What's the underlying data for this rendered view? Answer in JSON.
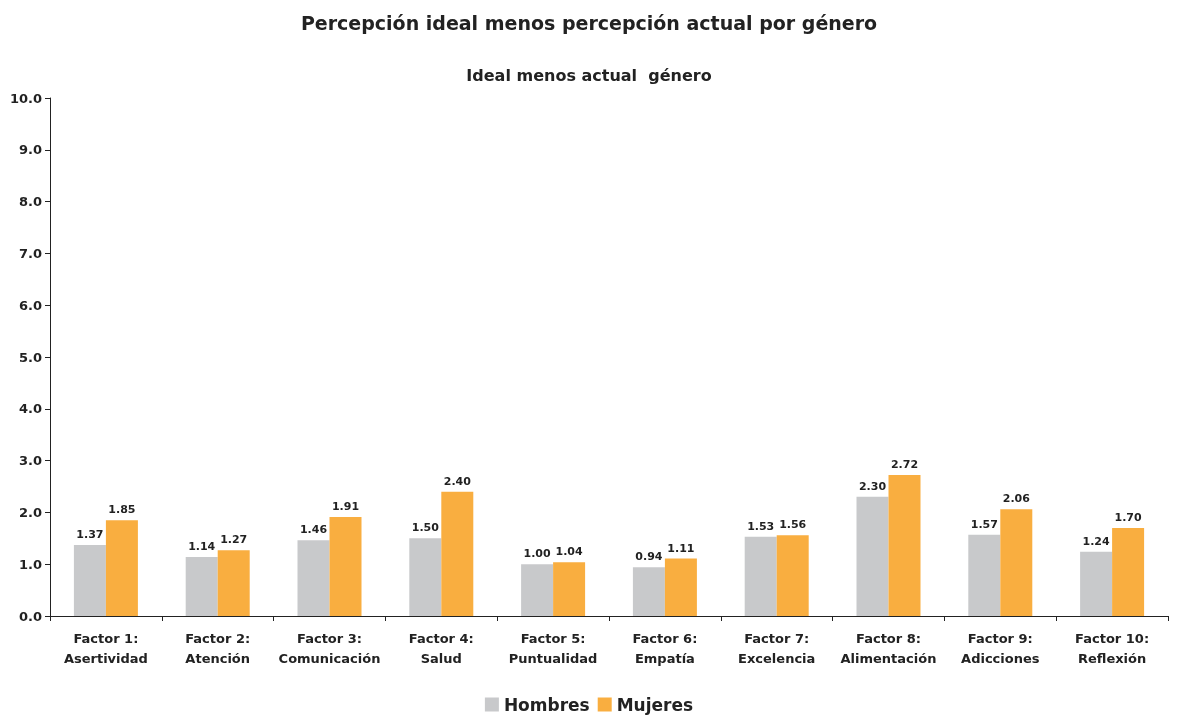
{
  "chart_data": {
    "type": "bar",
    "title": "Percepción ideal menos percepción actual por género",
    "subtitle": "Ideal menos actual  género",
    "categories": [
      "Factor 1:\nAsertividad",
      "Factor 2:\nAtención",
      "Factor 3:\nComunicación",
      "Factor 4:\nSalud",
      "Factor 5:\nPuntualidad",
      "Factor 6:\nEmpatía",
      "Factor 7:\nExcelencia",
      "Factor 8:\nAlimentación",
      "Factor 9:\nAdicciones",
      "Factor 10:\nReflexión"
    ],
    "series": [
      {
        "name": "Hombres",
        "color": "#c8c9cb",
        "values": [
          1.37,
          1.14,
          1.46,
          1.5,
          1.0,
          0.94,
          1.53,
          2.3,
          1.57,
          1.24
        ],
        "value_labels": [
          "1.37",
          "1.14",
          "1.46",
          "1.50",
          "1.00",
          "0.94",
          "1.53",
          "2.30",
          "1.57",
          "1.24"
        ]
      },
      {
        "name": "Mujeres",
        "color": "#f9ae40",
        "values": [
          1.85,
          1.27,
          1.91,
          2.4,
          1.04,
          1.11,
          1.56,
          2.72,
          2.06,
          1.7
        ],
        "value_labels": [
          "1.85",
          "1.27",
          "1.91",
          "2.40",
          "1.04",
          "1.11",
          "1.56",
          "2.72",
          "2.06",
          "1.70"
        ]
      }
    ],
    "ylim": [
      0,
      10
    ],
    "yticks": [
      {
        "value": 0,
        "label": "0.0"
      },
      {
        "value": 1,
        "label": "1.0"
      },
      {
        "value": 2,
        "label": "2.0"
      },
      {
        "value": 3,
        "label": "3.0"
      },
      {
        "value": 4,
        "label": "4.0"
      },
      {
        "value": 5,
        "label": "5.0"
      },
      {
        "value": 6,
        "label": "6.0"
      },
      {
        "value": 7,
        "label": "7.0"
      },
      {
        "value": 8,
        "label": "8.0"
      },
      {
        "value": 9,
        "label": "9.0"
      },
      {
        "value": 10,
        "label": "10.0"
      }
    ],
    "grid": false,
    "legend": "bottom"
  }
}
